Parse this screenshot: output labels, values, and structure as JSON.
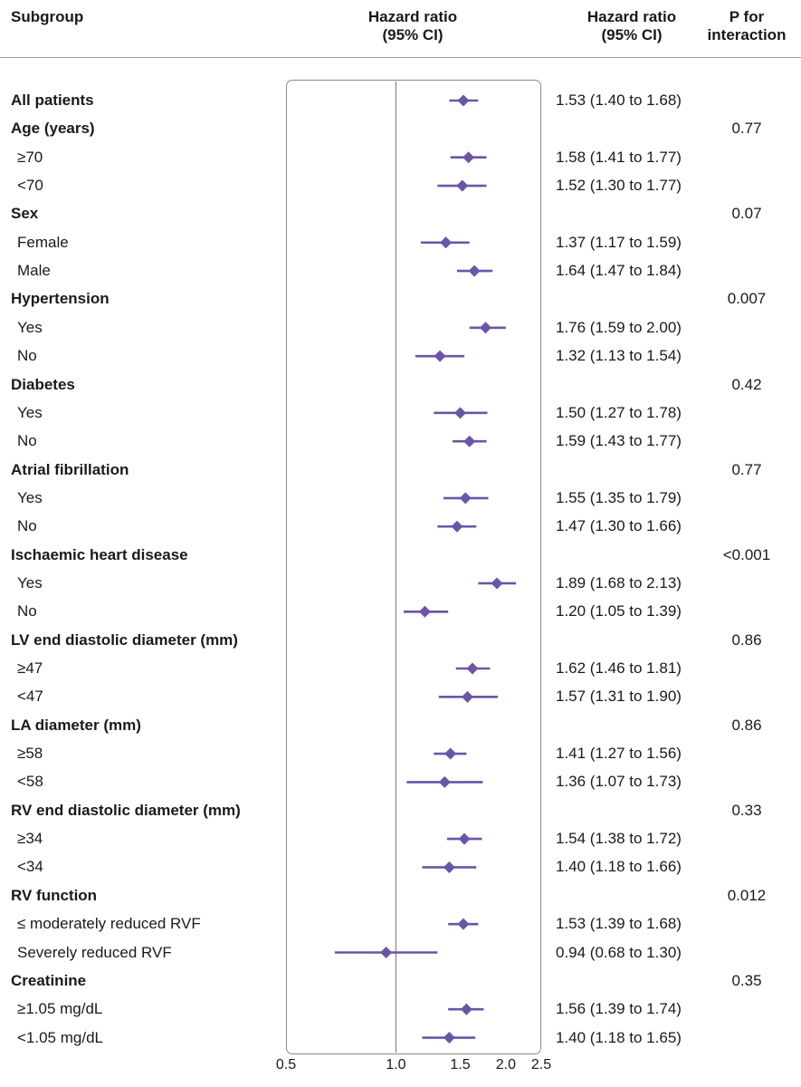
{
  "header": {
    "subgroup": "Subgroup",
    "plot_title_line1": "Hazard ratio",
    "plot_title_line2": "(95% CI)",
    "hr_title_line1": "Hazard ratio",
    "hr_title_line2": "(95% CI)",
    "p_title_line1": "P for",
    "p_title_line2": "interaction"
  },
  "colors": {
    "marker": "#6a55a8",
    "reference_line": "#8c8c8c",
    "frame": "#8c8c8c",
    "text": "#1a1a1a"
  },
  "chart_data": {
    "type": "forest",
    "scale": "log",
    "xlim": [
      0.5,
      2.5
    ],
    "reference_value": 1.0,
    "ticks": [
      0.5,
      1.0,
      1.5,
      2.0,
      2.5
    ],
    "tick_labels": [
      "0.5",
      "1.0",
      "1.5",
      "2.0",
      "2.5"
    ],
    "rows": [
      {
        "label": "All patients",
        "type": "group",
        "hr": 1.53,
        "lo": 1.4,
        "hi": 1.68,
        "text": "1.53 (1.40 to 1.68)",
        "p": ""
      },
      {
        "label": "Age (years)",
        "type": "group",
        "text": "",
        "p": "0.77"
      },
      {
        "label": "≥70",
        "type": "sub",
        "hr": 1.58,
        "lo": 1.41,
        "hi": 1.77,
        "text": "1.58 (1.41 to 1.77)",
        "p": ""
      },
      {
        "label": "<70",
        "type": "sub",
        "hr": 1.52,
        "lo": 1.3,
        "hi": 1.77,
        "text": "1.52 (1.30 to 1.77)",
        "p": ""
      },
      {
        "label": "Sex",
        "type": "group",
        "text": "",
        "p": "0.07"
      },
      {
        "label": "Female",
        "type": "sub",
        "hr": 1.37,
        "lo": 1.17,
        "hi": 1.59,
        "text": "1.37 (1.17 to 1.59)",
        "p": ""
      },
      {
        "label": "Male",
        "type": "sub",
        "hr": 1.64,
        "lo": 1.47,
        "hi": 1.84,
        "text": "1.64 (1.47 to 1.84)",
        "p": ""
      },
      {
        "label": "Hypertension",
        "type": "group",
        "text": "",
        "p": "0.007"
      },
      {
        "label": "Yes",
        "type": "sub",
        "hr": 1.76,
        "lo": 1.59,
        "hi": 2.0,
        "text": "1.76 (1.59 to 2.00)",
        "p": ""
      },
      {
        "label": "No",
        "type": "sub",
        "hr": 1.32,
        "lo": 1.13,
        "hi": 1.54,
        "text": "1.32 (1.13 to 1.54)",
        "p": ""
      },
      {
        "label": "Diabetes",
        "type": "group",
        "text": "",
        "p": "0.42"
      },
      {
        "label": "Yes",
        "type": "sub",
        "hr": 1.5,
        "lo": 1.27,
        "hi": 1.78,
        "text": "1.50 (1.27 to 1.78)",
        "p": ""
      },
      {
        "label": "No",
        "type": "sub",
        "hr": 1.59,
        "lo": 1.43,
        "hi": 1.77,
        "text": "1.59 (1.43 to 1.77)",
        "p": ""
      },
      {
        "label": "Atrial fibrillation",
        "type": "group",
        "text": "",
        "p": "0.77"
      },
      {
        "label": "Yes",
        "type": "sub",
        "hr": 1.55,
        "lo": 1.35,
        "hi": 1.79,
        "text": "1.55 (1.35 to 1.79)",
        "p": ""
      },
      {
        "label": "No",
        "type": "sub",
        "hr": 1.47,
        "lo": 1.3,
        "hi": 1.66,
        "text": "1.47 (1.30 to 1.66)",
        "p": ""
      },
      {
        "label": "Ischaemic heart disease",
        "type": "group",
        "text": "",
        "p": "<0.001"
      },
      {
        "label": "Yes",
        "type": "sub",
        "hr": 1.89,
        "lo": 1.68,
        "hi": 2.13,
        "text": "1.89 (1.68 to 2.13)",
        "p": ""
      },
      {
        "label": "No",
        "type": "sub",
        "hr": 1.2,
        "lo": 1.05,
        "hi": 1.39,
        "text": "1.20 (1.05 to 1.39)",
        "p": ""
      },
      {
        "label": "LV end diastolic diameter (mm)",
        "type": "group",
        "text": "",
        "p": "0.86"
      },
      {
        "label": "≥47",
        "type": "sub",
        "hr": 1.62,
        "lo": 1.46,
        "hi": 1.81,
        "text": "1.62 (1.46 to 1.81)",
        "p": ""
      },
      {
        "label": "<47",
        "type": "sub",
        "hr": 1.57,
        "lo": 1.31,
        "hi": 1.9,
        "text": "1.57 (1.31 to 1.90)",
        "p": ""
      },
      {
        "label": "LA diameter (mm)",
        "type": "group",
        "text": "",
        "p": "0.86"
      },
      {
        "label": "≥58",
        "type": "sub",
        "hr": 1.41,
        "lo": 1.27,
        "hi": 1.56,
        "text": "1.41 (1.27 to 1.56)",
        "p": ""
      },
      {
        "label": "<58",
        "type": "sub",
        "hr": 1.36,
        "lo": 1.07,
        "hi": 1.73,
        "text": "1.36 (1.07 to 1.73)",
        "p": ""
      },
      {
        "label": "RV end diastolic diameter (mm)",
        "type": "group",
        "text": "",
        "p": "0.33"
      },
      {
        "label": "≥34",
        "type": "sub",
        "hr": 1.54,
        "lo": 1.38,
        "hi": 1.72,
        "text": "1.54 (1.38 to 1.72)",
        "p": ""
      },
      {
        "label": "<34",
        "type": "sub",
        "hr": 1.4,
        "lo": 1.18,
        "hi": 1.66,
        "text": "1.40 (1.18 to 1.66)",
        "p": ""
      },
      {
        "label": "RV function",
        "type": "group",
        "text": "",
        "p": "0.012"
      },
      {
        "label": "≤ moderately reduced RVF",
        "type": "sub",
        "hr": 1.53,
        "lo": 1.39,
        "hi": 1.68,
        "text": "1.53 (1.39 to 1.68)",
        "p": ""
      },
      {
        "label": "Severely reduced RVF",
        "type": "sub",
        "hr": 0.94,
        "lo": 0.68,
        "hi": 1.3,
        "text": "0.94 (0.68 to 1.30)",
        "p": ""
      },
      {
        "label": "Creatinine",
        "type": "group",
        "text": "",
        "p": "0.35"
      },
      {
        "label": "≥1.05 mg/dL",
        "type": "sub",
        "hr": 1.56,
        "lo": 1.39,
        "hi": 1.74,
        "text": "1.56 (1.39 to 1.74)",
        "p": ""
      },
      {
        "label": "<1.05 mg/dL",
        "type": "sub",
        "hr": 1.4,
        "lo": 1.18,
        "hi": 1.65,
        "text": "1.40 (1.18 to 1.65)",
        "p": ""
      }
    ]
  }
}
